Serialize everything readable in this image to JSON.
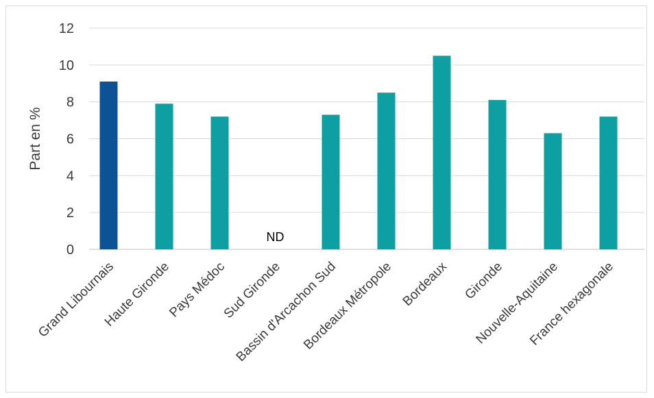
{
  "chart_data": {
    "type": "bar",
    "ylabel": "Part en %",
    "xlabel": "",
    "ylim": [
      0,
      12
    ],
    "yticks": [
      0,
      2,
      4,
      6,
      8,
      10,
      12
    ],
    "grid": true,
    "categories": [
      "Grand Libournais",
      "Haute Gironde",
      "Pays Médoc",
      "Sud Gironde",
      "Bassin d'Arcachon Sud",
      "Bordeaux Métropole",
      "Bordeaux",
      "Gironde",
      "Nouvelle-Aquitaine",
      "France hexagonale"
    ],
    "values": [
      9.1,
      7.9,
      7.2,
      null,
      7.3,
      8.5,
      10.5,
      8.1,
      6.3,
      7.2
    ],
    "missing_label": "ND",
    "colors": {
      "highlight": "#0b5394",
      "default": "#0e9fa3",
      "grid": "#d9d9d9",
      "axis": "#bfbfbf"
    },
    "highlight_index": 0
  }
}
